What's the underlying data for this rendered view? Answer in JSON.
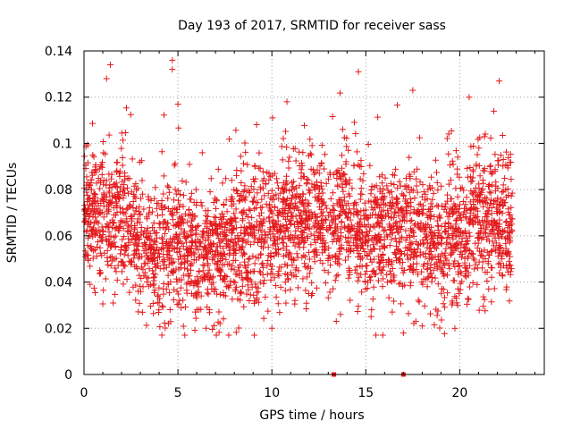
{
  "chart_data": {
    "type": "scatter",
    "title": "Day 193 of 2017, SRMTID for receiver sass",
    "xlabel": "GPS time / hours",
    "ylabel": "SRMTID / TECUs",
    "xlim": [
      0,
      24.5
    ],
    "ylim": [
      0,
      0.14
    ],
    "xticks": [
      0,
      5,
      10,
      15,
      20
    ],
    "xtick_labels": [
      "0",
      "5",
      "10",
      "15",
      "20"
    ],
    "yticks": [
      0,
      0.02,
      0.04,
      0.06,
      0.08,
      0.1,
      0.12,
      0.14
    ],
    "ytick_labels": [
      "0",
      "0.02",
      "0.04",
      "0.06",
      "0.08",
      "0.1",
      "0.12",
      "0.14"
    ],
    "grid": true,
    "marker": "+",
    "color": "#e41a1c",
    "series": [
      {
        "name": "SRMTID",
        "approx_points": 3200,
        "x_range": [
          0,
          22.8
        ],
        "trend": [
          [
            0.0,
            0.07
          ],
          [
            1.0,
            0.068
          ],
          [
            2.0,
            0.066
          ],
          [
            3.0,
            0.055
          ],
          [
            4.0,
            0.05
          ],
          [
            5.0,
            0.054
          ],
          [
            6.0,
            0.05
          ],
          [
            7.0,
            0.05
          ],
          [
            8.0,
            0.056
          ],
          [
            9.0,
            0.06
          ],
          [
            10.0,
            0.058
          ],
          [
            11.0,
            0.068
          ],
          [
            12.0,
            0.065
          ],
          [
            13.0,
            0.063
          ],
          [
            14.0,
            0.066
          ],
          [
            15.0,
            0.058
          ],
          [
            16.0,
            0.06
          ],
          [
            17.0,
            0.062
          ],
          [
            18.0,
            0.06
          ],
          [
            19.0,
            0.052
          ],
          [
            20.0,
            0.06
          ],
          [
            21.0,
            0.066
          ],
          [
            22.0,
            0.066
          ],
          [
            22.8,
            0.06
          ]
        ],
        "highlights": [
          [
            1.4,
            0.134
          ],
          [
            4.7,
            0.136
          ],
          [
            1.2,
            0.128
          ],
          [
            4.7,
            0.132
          ],
          [
            17.5,
            0.123
          ],
          [
            20.5,
            0.12
          ],
          [
            22.1,
            0.127
          ],
          [
            10.8,
            0.118
          ],
          [
            5.0,
            0.117
          ],
          [
            4.5,
            0.022
          ],
          [
            6.5,
            0.02
          ],
          [
            10.0,
            0.02
          ],
          [
            18.0,
            0.021
          ]
        ]
      }
    ],
    "baseline_markers": [
      13.3,
      17.0
    ]
  }
}
